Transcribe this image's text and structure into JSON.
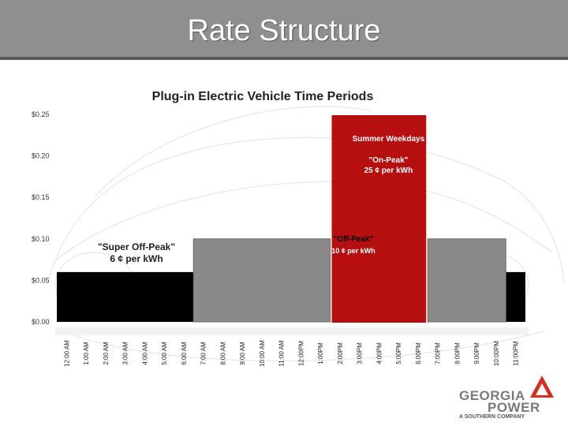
{
  "slide": {
    "title": "Rate Structure"
  },
  "logo": {
    "line1": "GEORGIA",
    "line2": "POWER",
    "tagline": "A SOUTHERN COMPANY",
    "accent_color": "#d32f20"
  },
  "chart_data": {
    "type": "bar",
    "title": "Plug-in Electric Vehicle Time Periods",
    "xlabel": "",
    "ylabel": "",
    "ylim": [
      0,
      0.25
    ],
    "y_ticks": [
      "$0.00",
      "$0.05",
      "$0.10",
      "$0.15",
      "$0.20",
      "$0.25"
    ],
    "y_tick_values": [
      0,
      0.05,
      0.1,
      0.15,
      0.2,
      0.25
    ],
    "categories": [
      "12:00 AM",
      "1:00 AM",
      "2:00 AM",
      "3:00 AM",
      "4:00 AM",
      "5:00 AM",
      "6:00 AM",
      "7:00 AM",
      "8:00 AM",
      "9:00 AM",
      "10:00 AM",
      "11:00 AM",
      "12:00PM",
      "1:00PM",
      "2:00PM",
      "3:00PM",
      "4:00PM",
      "5:00PM",
      "6:00PM",
      "7:00PM",
      "8:00PM",
      "9:00PM",
      "10:00PM",
      "11:00PM"
    ],
    "series": [
      {
        "name": "Super Off-Peak",
        "color": "#000000",
        "values": [
          0.06,
          0.06,
          0.06,
          0.06,
          0.06,
          0.06,
          0.06,
          0,
          0,
          0,
          0,
          0,
          0,
          0,
          0,
          0,
          0,
          0,
          0,
          0,
          0,
          0,
          0,
          0.06
        ]
      },
      {
        "name": "Off-Peak",
        "color": "#8a8a8a",
        "values": [
          0,
          0,
          0,
          0,
          0,
          0,
          0,
          0.1,
          0.1,
          0.1,
          0.1,
          0.1,
          0.1,
          0.1,
          0,
          0,
          0,
          0,
          0,
          0.1,
          0.1,
          0.1,
          0.1,
          0
        ]
      },
      {
        "name": "On-Peak",
        "color": "#b50f0f",
        "values": [
          0,
          0,
          0,
          0,
          0,
          0,
          0,
          0,
          0,
          0,
          0,
          0,
          0,
          0,
          0.25,
          0.25,
          0.25,
          0.25,
          0.25,
          0,
          0,
          0,
          0,
          0
        ]
      }
    ],
    "annotations": {
      "on_peak": [
        "Summer Weekdays",
        "\"On-Peak\"",
        "25 ¢ per kWh"
      ],
      "off_peak": [
        "\"Off-Peak\"",
        "10 ¢ per kWh"
      ],
      "super_off_peak": [
        "\"Super Off-Peak\"",
        "6 ¢ per kWh"
      ]
    },
    "grid": false,
    "legend": "none"
  }
}
